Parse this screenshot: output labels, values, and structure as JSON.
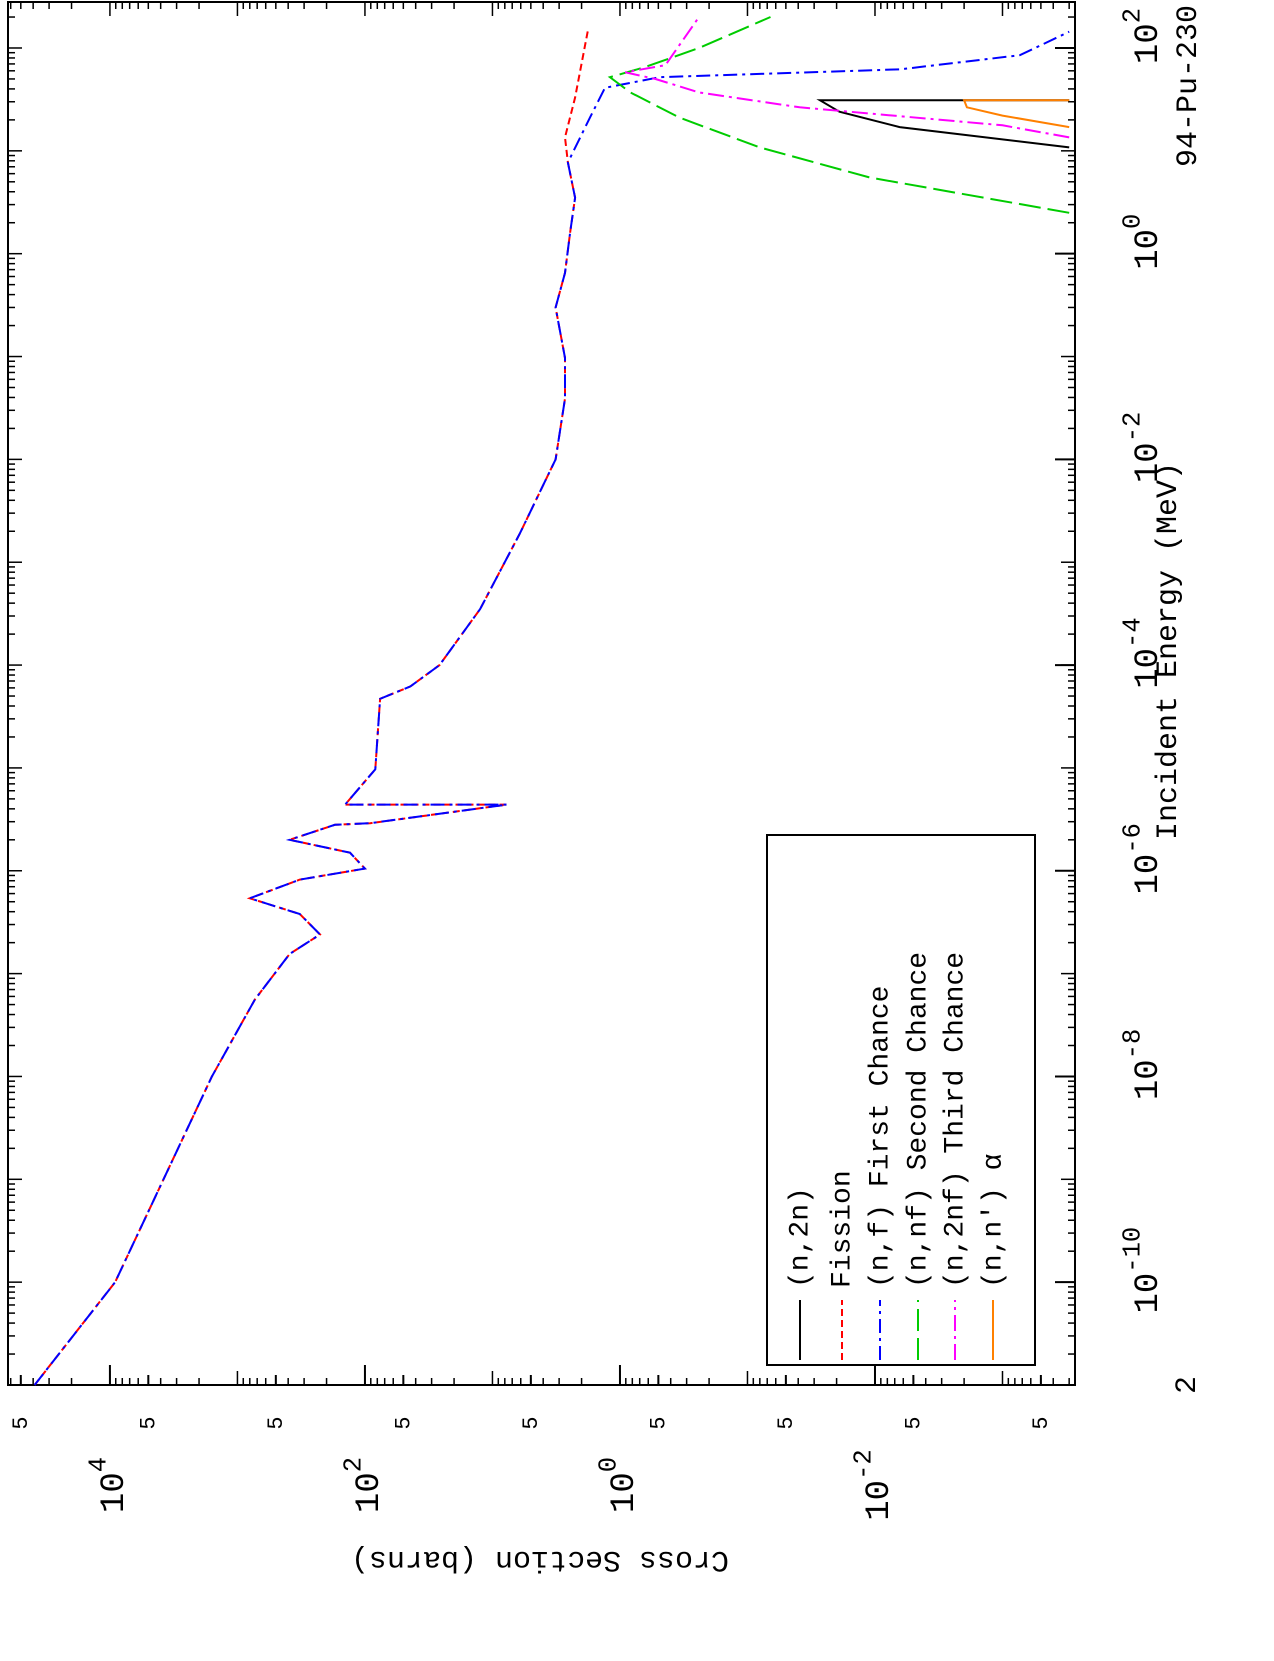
{
  "chart_data": {
    "type": "line",
    "x_label": "Incident Energy (MeV)",
    "y_label": "Cross Section (barns)",
    "annotation": "94-Pu-230",
    "page_number": "2",
    "xscale": "log",
    "yscale": "log",
    "xlim": [
      1e-11,
      280
    ],
    "ylim": [
      0.00027,
      63000
    ],
    "xticks": [
      {
        "value": 1e-10,
        "label": "10",
        "sup": "-10"
      },
      {
        "value": 1e-08,
        "label": "10",
        "sup": "-8"
      },
      {
        "value": 1e-06,
        "label": "10",
        "sup": "-6"
      },
      {
        "value": 0.0001,
        "label": "10",
        "sup": "-4"
      },
      {
        "value": 0.01,
        "label": "10",
        "sup": "-2"
      },
      {
        "value": 1,
        "label": "10",
        "sup": "0"
      },
      {
        "value": 100,
        "label": "10",
        "sup": "2"
      }
    ],
    "yticks": [
      {
        "value": 50000,
        "label": "5"
      },
      {
        "value": 10000,
        "label": "10",
        "sup": "4"
      },
      {
        "value": 5000,
        "label": "5"
      },
      {
        "value": 500,
        "label": "5"
      },
      {
        "value": 100,
        "label": "10",
        "sup": "2"
      },
      {
        "value": 50,
        "label": "5"
      },
      {
        "value": 5,
        "label": "5"
      },
      {
        "value": 1,
        "label": "10",
        "sup": "0"
      },
      {
        "value": 0.5,
        "label": "5"
      },
      {
        "value": 0.05,
        "label": "5"
      },
      {
        "value": 0.01,
        "label": "10",
        "sup": "-2"
      },
      {
        "value": 0.005,
        "label": "5"
      },
      {
        "value": 0.0005,
        "label": "5"
      }
    ],
    "series": [
      {
        "name": "(n,2n)",
        "color": "#000000",
        "dash": "none",
        "x": [
          10.8,
          17,
          24,
          31,
          31
        ],
        "values": [
          0.0003,
          0.0064,
          0.019,
          0.027,
          0.0003
        ]
      },
      {
        "name": "Fission",
        "color": "#ff0000",
        "dash": "7,4",
        "x": [
          1e-11,
          1e-10,
          1e-08,
          5.6e-08,
          1.55e-07,
          2.4e-07,
          3.8e-07,
          5.4e-07,
          8.2e-07,
          1.05e-06,
          1.5e-06,
          2e-06,
          2.8e-06,
          2.9e-06,
          4.4e-06,
          4.4e-06,
          9.7e-06,
          4.7e-05,
          6.2e-05,
          0.0001,
          0.00035,
          0.0019,
          0.01,
          0.039,
          0.097,
          0.3,
          0.65,
          1.6,
          3.5,
          7.7,
          13.5,
          33,
          150
        ],
        "values": [
          39000,
          9100,
          1585,
          730,
          390,
          225,
          324,
          800,
          324,
          100,
          131,
          390,
          172,
          91,
          7.7,
          143,
          83,
          76,
          44,
          26,
          12.5,
          6.1,
          3.2,
          2.7,
          2.7,
          3.2,
          2.7,
          2.46,
          2.25,
          2.56,
          2.7,
          2.25,
          1.78
        ]
      },
      {
        "name": "(n,f) First Chance",
        "color": "#0000ff",
        "dash": "14,5,3,5",
        "x": [
          1e-11,
          1e-10,
          1e-08,
          5.6e-08,
          1.55e-07,
          2.4e-07,
          3.8e-07,
          5.4e-07,
          8.2e-07,
          1.05e-06,
          1.5e-06,
          2e-06,
          2.8e-06,
          2.9e-06,
          4.4e-06,
          4.4e-06,
          9.7e-06,
          4.7e-05,
          6.2e-05,
          0.0001,
          0.00035,
          0.0019,
          0.01,
          0.039,
          0.097,
          0.3,
          0.65,
          1.6,
          3.5,
          7.7,
          21,
          41,
          52,
          62,
          85,
          144
        ],
        "values": [
          39000,
          9100,
          1585,
          730,
          390,
          225,
          324,
          800,
          324,
          100,
          131,
          390,
          172,
          91,
          7.7,
          143,
          83,
          76,
          44,
          26,
          12.5,
          6.1,
          3.2,
          2.7,
          2.7,
          3.2,
          2.7,
          2.46,
          2.25,
          2.56,
          1.72,
          1.31,
          0.49,
          0.0063,
          0.00073,
          0.0003
        ]
      },
      {
        "name": "(n,nf) Second Chance",
        "color": "#00cc00",
        "dash": "22,7",
        "x": [
          2.5,
          5.5,
          10.8,
          21,
          37,
          52,
          65,
          100,
          200
        ],
        "values": [
          0.0003,
          0.011,
          0.08,
          0.34,
          0.83,
          1.2,
          0.64,
          0.24,
          0.066
        ]
      },
      {
        "name": "(n,2nf) Third Chance",
        "color": "#ff00ff",
        "dash": "16,5,3,5",
        "x": [
          13.5,
          17.7,
          26.5,
          37,
          50,
          58,
          68,
          200
        ],
        "values": [
          0.0003,
          0.001,
          0.039,
          0.24,
          0.53,
          0.91,
          0.44,
          0.24
        ]
      },
      {
        "name": "(n,n') α",
        "color": "#ff8000",
        "dash": "none",
        "x": [
          17,
          22,
          26.5,
          31,
          31
        ],
        "values": [
          0.0003,
          0.001,
          0.0019,
          0.002,
          0.0003
        ]
      }
    ]
  }
}
